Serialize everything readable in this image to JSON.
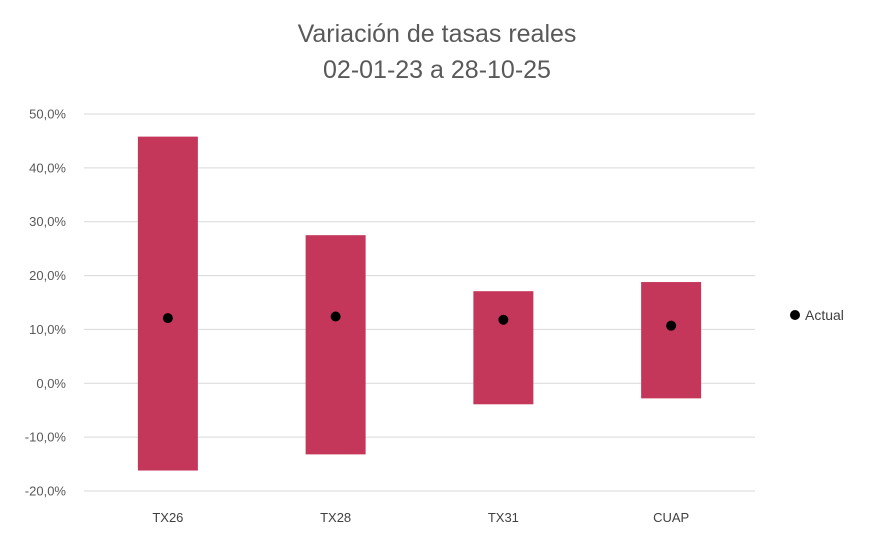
{
  "chart_data": {
    "type": "range-bar",
    "title": "Variación de tasas reales",
    "subtitle": "02-01-23 a 28-10-25",
    "categories": [
      "TX26",
      "TX28",
      "TX31",
      "CUAP"
    ],
    "series": [
      {
        "kind": "range",
        "low": [
          -16.2,
          -13.2,
          -3.9,
          -2.8
        ],
        "high": [
          45.8,
          27.5,
          17.1,
          18.8
        ]
      },
      {
        "kind": "point",
        "name": "Actual",
        "values": [
          12.1,
          12.4,
          11.8,
          10.7
        ]
      }
    ],
    "y_ticks": [
      "50,0%",
      "40,0%",
      "30,0%",
      "20,0%",
      "10,0%",
      "0,0%",
      "-10,0%",
      "-20,0%"
    ],
    "ylim": [
      -20,
      50
    ],
    "grid": true,
    "legend_position": "right",
    "colors": {
      "bar": "#c4375a",
      "point": "#000000",
      "grid": "#d9d9d9"
    }
  }
}
